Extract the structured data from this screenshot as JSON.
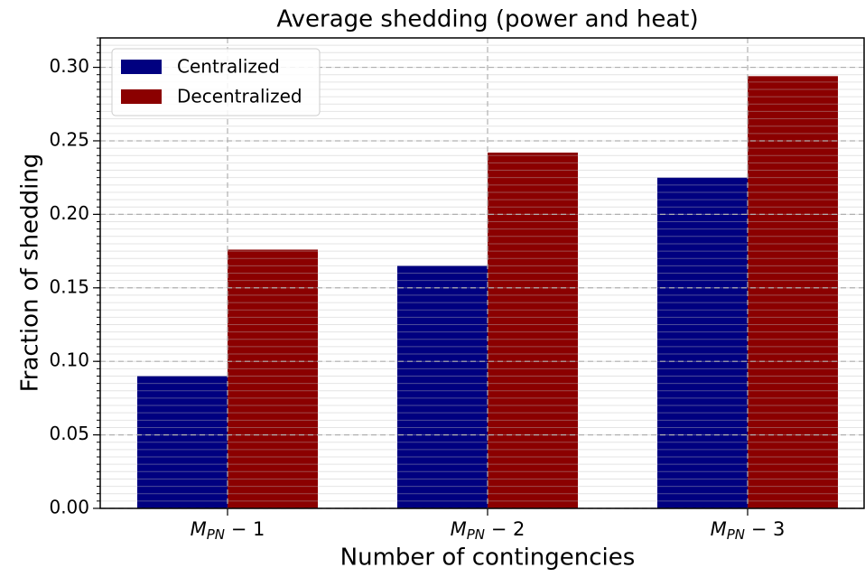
{
  "chart_data": {
    "type": "bar",
    "title": "Average shedding (power and heat)",
    "x_label": "Number of contingencies",
    "y_label": "Fraction of shedding",
    "categories": [
      "MPN − 1",
      "MPN − 2",
      "MPN − 3"
    ],
    "series": [
      {
        "name": "Centralized",
        "color": "#000080",
        "values": [
          0.09,
          0.165,
          0.225
        ]
      },
      {
        "name": "Decentralized",
        "color": "#8b0000",
        "values": [
          0.176,
          0.242,
          0.294
        ]
      }
    ],
    "ylim": [
      0,
      0.32
    ],
    "yticks": [
      {
        "value": 0,
        "label": "0.00"
      },
      0.05,
      {
        "value": 0.1,
        "label": "0.10"
      },
      0.15,
      {
        "value": 0.2,
        "label": "0.20"
      },
      0.25,
      {
        "value": 0.3,
        "label": "0.30"
      }
    ],
    "yminor": 0.005,
    "grid": true,
    "legend": "upper left"
  }
}
